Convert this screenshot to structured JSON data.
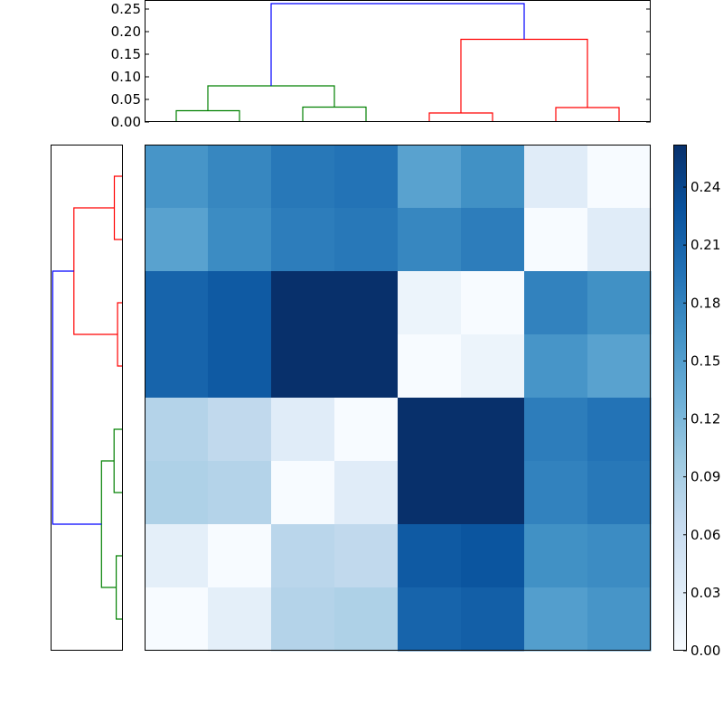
{
  "chart_data": {
    "type": "heatmap",
    "title": "",
    "xlabel": "",
    "ylabel": "",
    "matrix": [
      [
        0.16,
        0.175,
        0.19,
        0.195,
        0.145,
        0.165,
        0.03,
        0.0
      ],
      [
        0.145,
        0.17,
        0.185,
        0.19,
        0.175,
        0.185,
        0.0,
        0.03
      ],
      [
        0.21,
        0.22,
        0.262,
        0.262,
        0.015,
        0.0,
        0.18,
        0.165
      ],
      [
        0.21,
        0.22,
        0.262,
        0.262,
        0.0,
        0.015,
        0.16,
        0.145
      ],
      [
        0.08,
        0.07,
        0.03,
        0.0,
        0.262,
        0.262,
        0.185,
        0.195
      ],
      [
        0.085,
        0.08,
        0.0,
        0.03,
        0.262,
        0.262,
        0.18,
        0.19
      ],
      [
        0.025,
        0.0,
        0.075,
        0.07,
        0.22,
        0.225,
        0.165,
        0.17
      ],
      [
        0.0,
        0.025,
        0.08,
        0.085,
        0.21,
        0.215,
        0.15,
        0.16
      ]
    ],
    "colormap": {
      "name": "Blues",
      "low": "#f7fbff",
      "high": "#08306b"
    },
    "colorbar": {
      "range": [
        0.0,
        0.262
      ],
      "ticks": [
        0.0,
        0.03,
        0.06,
        0.09,
        0.12,
        0.15,
        0.18,
        0.21,
        0.24
      ],
      "tick_labels": [
        "0.00",
        "0.03",
        "0.06",
        "0.09",
        "0.12",
        "0.15",
        "0.18",
        "0.21",
        "0.24"
      ]
    },
    "top_dendrogram": {
      "ylim": [
        0.0,
        0.27
      ],
      "ticks": [
        0.0,
        0.05,
        0.1,
        0.15,
        0.2,
        0.25
      ],
      "tick_labels": [
        "0.00",
        "0.05",
        "0.10",
        "0.15",
        "0.20",
        "0.25"
      ],
      "links": [
        {
          "left": 0,
          "right": 1,
          "height": 0.025,
          "color": "#008000"
        },
        {
          "left": 2,
          "right": 3,
          "height": 0.033,
          "color": "#008000"
        },
        {
          "left": 4,
          "right": 5,
          "height": 0.02,
          "color": "#ff0000"
        },
        {
          "left": 6,
          "right": 7,
          "height": 0.032,
          "color": "#ff0000"
        },
        {
          "left": "0-1",
          "right": "2-3",
          "height": 0.08,
          "color": "#008000"
        },
        {
          "left": "4-5",
          "right": "6-7",
          "height": 0.183,
          "color": "#ff0000"
        },
        {
          "left": "0-3",
          "right": "4-7",
          "height": 0.262,
          "color": "#0000ff"
        }
      ]
    },
    "left_dendrogram": {
      "xlim": [
        0.0,
        0.27
      ],
      "links": [
        {
          "top": 0,
          "bottom": 1,
          "height": 0.032,
          "color": "#ff0000"
        },
        {
          "top": 2,
          "bottom": 3,
          "height": 0.02,
          "color": "#ff0000"
        },
        {
          "top": 4,
          "bottom": 5,
          "height": 0.033,
          "color": "#008000"
        },
        {
          "top": 6,
          "bottom": 7,
          "height": 0.025,
          "color": "#008000"
        },
        {
          "top": "0-1",
          "bottom": "2-3",
          "height": 0.183,
          "color": "#ff0000"
        },
        {
          "top": "4-5",
          "bottom": "6-7",
          "height": 0.08,
          "color": "#008000"
        },
        {
          "top": "0-3",
          "bottom": "4-7",
          "height": 0.262,
          "color": "#0000ff"
        }
      ]
    }
  }
}
